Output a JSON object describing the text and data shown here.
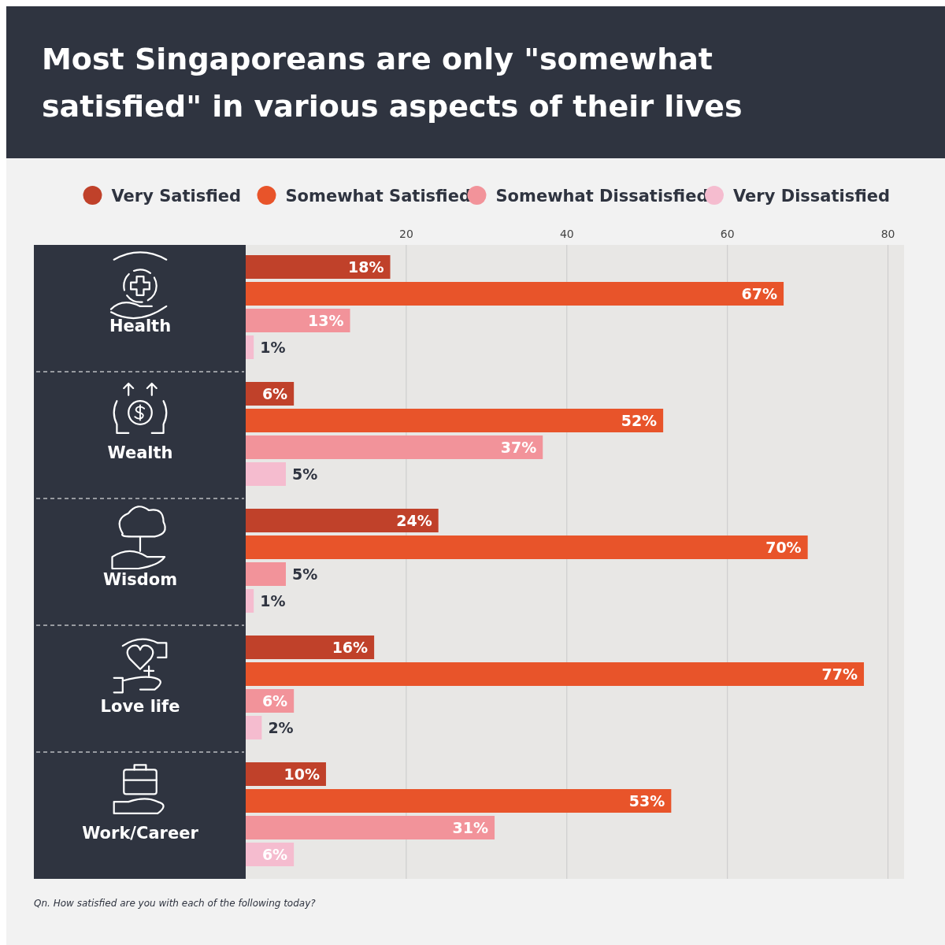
{
  "chart_data": {
    "type": "bar",
    "orientation": "horizontal",
    "title": "Most Singaporeans are only \"somewhat satisfied\" in various aspects of their lives",
    "categories": [
      "Health",
      "Wealth",
      "Wisdom",
      "Love life",
      "Work/Career"
    ],
    "series": [
      {
        "name": "Very Satisfied",
        "color": "#c0412a",
        "values": [
          18,
          6,
          24,
          16,
          10
        ],
        "value_labels": [
          "18%",
          "6%",
          "24%",
          "16%",
          "10%"
        ]
      },
      {
        "name": "Somewhat Satisfied",
        "color": "#e8542a",
        "values": [
          67,
          52,
          70,
          77,
          53
        ],
        "value_labels": [
          "67%",
          "52%",
          "70%",
          "77%",
          "53%"
        ]
      },
      {
        "name": "Somewhat Dissatisfied",
        "color": "#f2939a",
        "values": [
          13,
          37,
          5,
          6,
          31
        ],
        "value_labels": [
          "13%",
          "37%",
          "5%",
          "6%",
          "31%"
        ]
      },
      {
        "name": "Very Dissatisfied",
        "color": "#f5bccf",
        "values": [
          1,
          5,
          1,
          2,
          6
        ],
        "value_labels": [
          "1%",
          "5%",
          "1%",
          "2%",
          "6%"
        ]
      }
    ],
    "xlim": [
      0,
      82
    ],
    "xticks": [
      20,
      40,
      60,
      80
    ],
    "grid": "x",
    "legend": "top",
    "annotations": [
      "Qn. How satisfied are you with each of the following today?"
    ]
  }
}
